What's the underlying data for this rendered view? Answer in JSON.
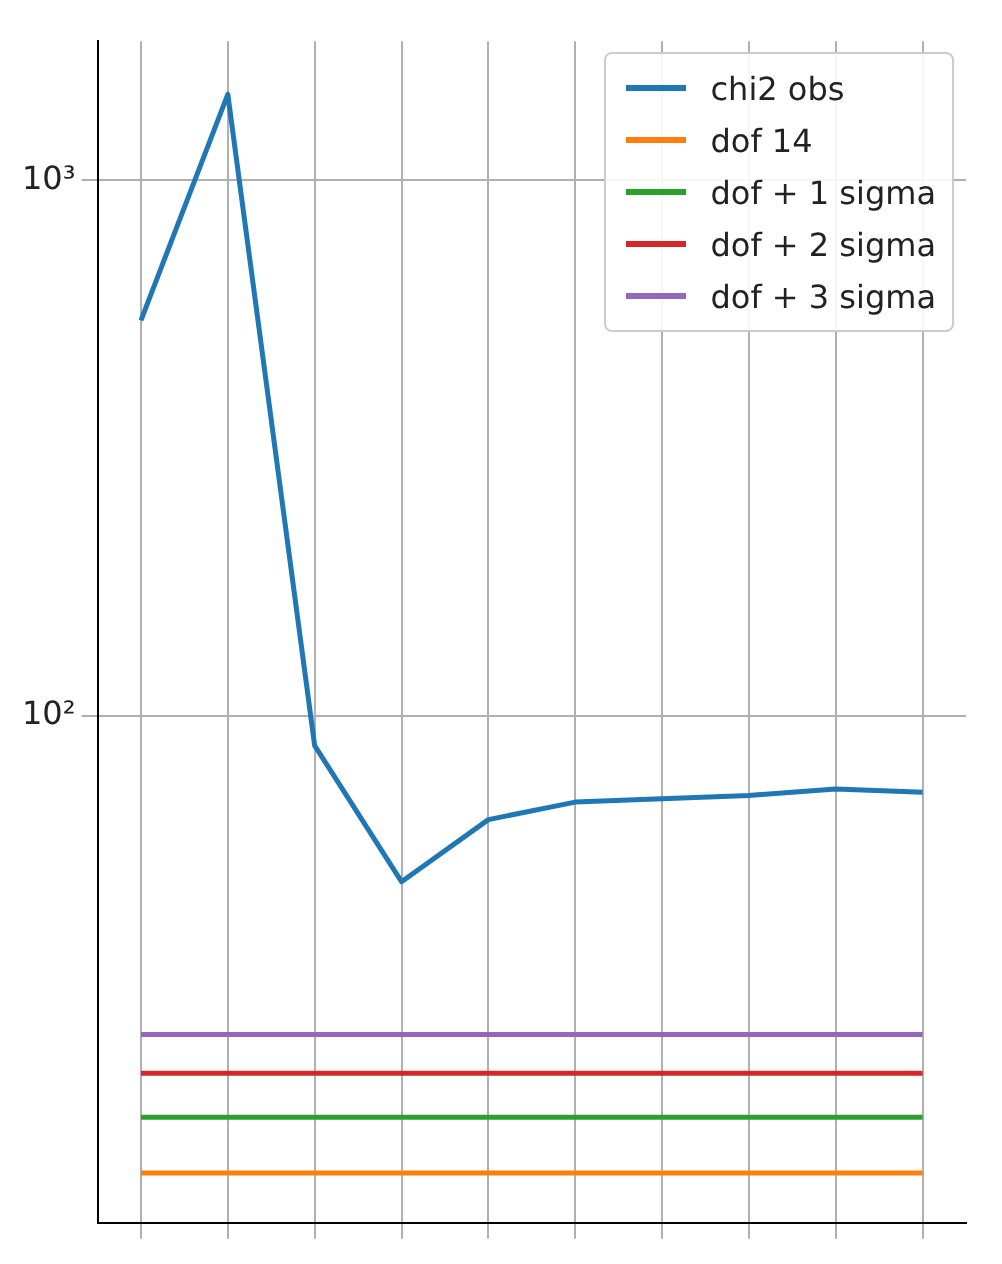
{
  "chart_data": {
    "type": "line",
    "log": "y",
    "grid": true,
    "legend": "top right",
    "marker": "none",
    "line_style": "solid",
    "tick_labels": "y",
    "categories": [
      null,
      null,
      null,
      null,
      null,
      null,
      null,
      null,
      null,
      null
    ],
    "ylim": [
      11.3,
      1820
    ],
    "yticks": [
      {
        "value": 100,
        "label": "10²"
      },
      {
        "value": 1000,
        "label": "10³"
      }
    ],
    "series": [
      {
        "name": "chi2 obs",
        "color": "#1f77b4",
        "values": [
          548,
          1448,
          88,
          49,
          64,
          69,
          70,
          71,
          73,
          72
        ]
      }
    ],
    "ref_lines": [
      {
        "axis": "y",
        "value": 14,
        "label": "dof 14",
        "color": "#ff7f0e",
        "line_style": "solid"
      },
      {
        "axis": "y",
        "value": 17.8,
        "label": "dof + 1 sigma",
        "color": "#2ca02c",
        "line_style": "solid"
      },
      {
        "axis": "y",
        "value": 21.5,
        "label": "dof + 2 sigma",
        "color": "#d62728",
        "line_style": "solid"
      },
      {
        "axis": "y",
        "value": 25.4,
        "label": "dof + 3 sigma",
        "color": "#9467bd",
        "line_style": "solid"
      }
    ]
  }
}
